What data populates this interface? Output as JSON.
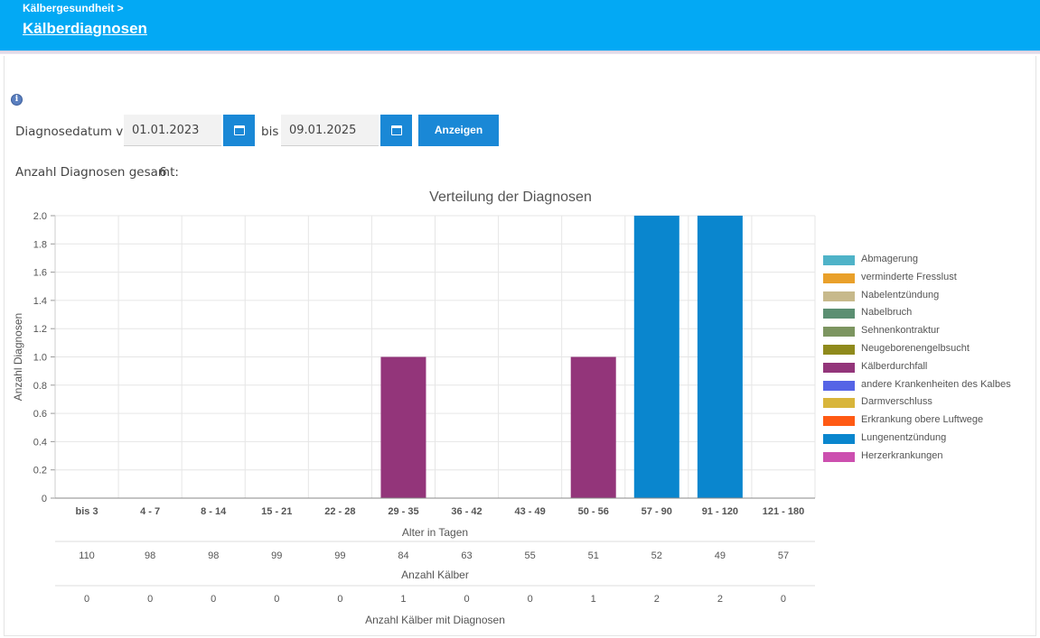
{
  "header": {
    "breadcrumb": "Kälbergesundheit >",
    "title": "Kälberdiagnosen"
  },
  "filter": {
    "label_from": "Diagnosedatum von",
    "date_from": "01.01.2023",
    "label_to": "bis",
    "date_to": "09.01.2025",
    "show_button": "Anzeigen"
  },
  "summary": {
    "label": "Anzahl Diagnosen gesamt:",
    "value": "6"
  },
  "icons": {
    "info": "info-icon",
    "calendar": "calendar-icon"
  },
  "chart_data": {
    "type": "bar",
    "title": "Verteilung der Diagnosen",
    "xlabel": "Alter in Tagen",
    "ylabel": "Anzahl Diagnosen",
    "ylim": [
      0,
      2
    ],
    "yticks": [
      "0",
      "0.2",
      "0.4",
      "0.6",
      "0.8",
      "1.0",
      "1.2",
      "1.4",
      "1.6",
      "1.8",
      "2.0"
    ],
    "grid": true,
    "legend_position": "right",
    "categories": [
      "bis 3",
      "4 - 7",
      "8 - 14",
      "15 - 21",
      "22 - 28",
      "29 - 35",
      "36 - 42",
      "43 - 49",
      "50 - 56",
      "57 - 90",
      "91 - 120",
      "121 - 180"
    ],
    "series": [
      {
        "name": "Abmagerung",
        "color": "#4fb3c8",
        "values": [
          0,
          0,
          0,
          0,
          0,
          0,
          0,
          0,
          0,
          0,
          0,
          0
        ]
      },
      {
        "name": "verminderte Fresslust",
        "color": "#e9a02a",
        "values": [
          0,
          0,
          0,
          0,
          0,
          0,
          0,
          0,
          0,
          0,
          0,
          0
        ]
      },
      {
        "name": "Nabelentzündung",
        "color": "#c7b98b",
        "values": [
          0,
          0,
          0,
          0,
          0,
          0,
          0,
          0,
          0,
          0,
          0,
          0
        ]
      },
      {
        "name": "Nabelbruch",
        "color": "#5b8f72",
        "values": [
          0,
          0,
          0,
          0,
          0,
          0,
          0,
          0,
          0,
          0,
          0,
          0
        ]
      },
      {
        "name": "Sehnenkontraktur",
        "color": "#7c9560",
        "values": [
          0,
          0,
          0,
          0,
          0,
          0,
          0,
          0,
          0,
          0,
          0,
          0
        ]
      },
      {
        "name": "Neugeborenengelbsucht",
        "color": "#8f8a1c",
        "values": [
          0,
          0,
          0,
          0,
          0,
          0,
          0,
          0,
          0,
          0,
          0,
          0
        ]
      },
      {
        "name": "Kälberdurchfall",
        "color": "#93357a",
        "values": [
          0,
          0,
          0,
          0,
          0,
          1,
          0,
          0,
          1,
          0,
          0,
          0
        ]
      },
      {
        "name": "andere Krankenheiten des Kalbes",
        "color": "#5564e6",
        "values": [
          0,
          0,
          0,
          0,
          0,
          0,
          0,
          0,
          0,
          0,
          0,
          0
        ]
      },
      {
        "name": "Darmverschluss",
        "color": "#d8b53a",
        "values": [
          0,
          0,
          0,
          0,
          0,
          0,
          0,
          0,
          0,
          0,
          0,
          0
        ]
      },
      {
        "name": "Erkrankung obere Luftwege",
        "color": "#ff5a14",
        "values": [
          0,
          0,
          0,
          0,
          0,
          0,
          0,
          0,
          0,
          0,
          0,
          0
        ]
      },
      {
        "name": "Lungenentzündung",
        "color": "#0a86ce",
        "values": [
          0,
          0,
          0,
          0,
          0,
          0,
          0,
          0,
          0,
          2,
          2,
          0
        ]
      },
      {
        "name": "Herzerkrankungen",
        "color": "#cc4faf",
        "values": [
          0,
          0,
          0,
          0,
          0,
          0,
          0,
          0,
          0,
          0,
          0,
          0
        ]
      }
    ],
    "table_rows": [
      {
        "label": "Anzahl Kälber",
        "values": [
          "110",
          "98",
          "98",
          "99",
          "99",
          "84",
          "63",
          "55",
          "51",
          "52",
          "49",
          "57"
        ]
      },
      {
        "label": "Anzahl Kälber mit Diagnosen",
        "values": [
          "0",
          "0",
          "0",
          "0",
          "0",
          "1",
          "0",
          "0",
          "1",
          "2",
          "2",
          "0"
        ]
      }
    ]
  }
}
